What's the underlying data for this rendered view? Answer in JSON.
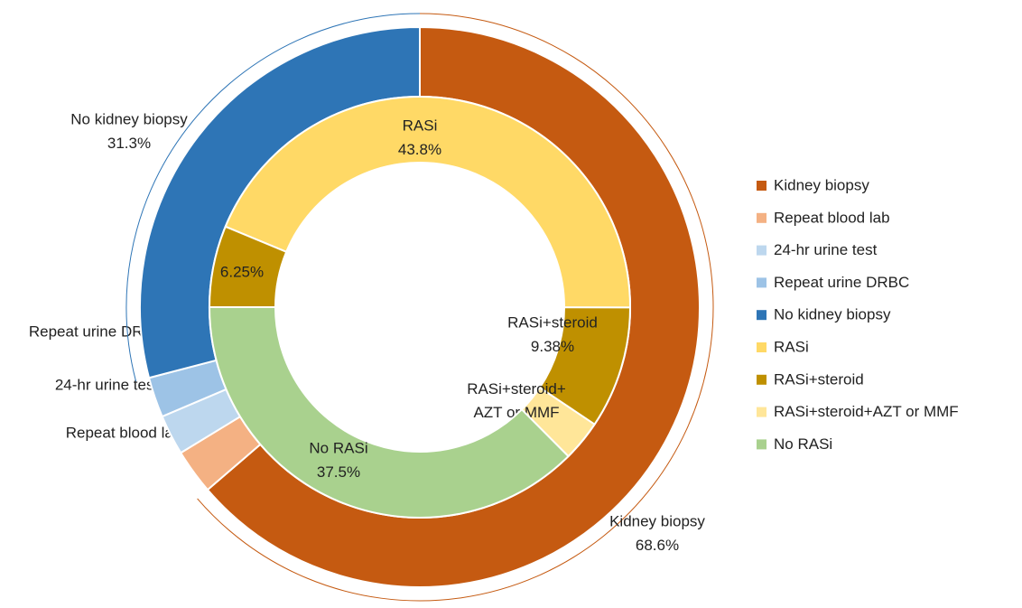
{
  "chart_data": {
    "type": "nested-donut",
    "rings": [
      {
        "categories": [
          "Kidney biopsy",
          "Repeat blood lab",
          "24-hr urine test",
          "Repeat urine DRBC",
          "No kidney biopsy"
        ],
        "values": [
          68.6,
          2.8,
          2.5,
          2.5,
          31.3
        ],
        "value_labels": [
          "68.6%",
          null,
          null,
          null,
          "31.3%"
        ],
        "colors": [
          "#c55a11",
          "#f4b183",
          "#bdd7ee",
          "#9dc3e6",
          "#2e75b6"
        ],
        "start_angle": 0
      },
      {
        "categories": [
          "RASi",
          "RASi+steroid",
          "RASi+steroid+AZT or MMF",
          "No RASi",
          null
        ],
        "values": [
          43.8,
          9.38,
          3.13,
          37.5,
          6.25
        ],
        "value_labels": [
          "43.8%",
          "9.38%",
          "3.13%",
          "37.5%",
          "6.25%"
        ],
        "colors": [
          "#ffd966",
          "#bf9000",
          "#ffe699",
          "#a9d18e",
          "#bf9000"
        ],
        "start_angle": -67.5
      }
    ],
    "legend": "right"
  }
}
